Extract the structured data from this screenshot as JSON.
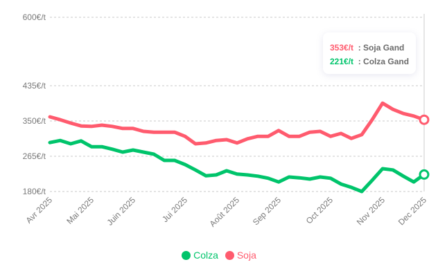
{
  "chart_data": {
    "type": "line",
    "x_tick_labels": [
      {
        "label": "Avr 2025",
        "index": 0
      },
      {
        "label": "Mai 2025",
        "index": 4
      },
      {
        "label": "Juin 2025",
        "index": 8
      },
      {
        "label": "Jui 2025",
        "index": 13
      },
      {
        "label": "Août 2025",
        "index": 18
      },
      {
        "label": "Sep 2025",
        "index": 22
      },
      {
        "label": "Oct 2025",
        "index": 27
      },
      {
        "label": "Nov 2025",
        "index": 32
      },
      {
        "label": "Dec 2025",
        "index": 36
      }
    ],
    "y_ticks": [
      {
        "value": 180,
        "label": "180€/t"
      },
      {
        "value": 265,
        "label": "265€/t"
      },
      {
        "value": 350,
        "label": "350€/t"
      },
      {
        "value": 435,
        "label": "435€/t"
      },
      {
        "value": 600,
        "label": "600€/t"
      }
    ],
    "ylim": [
      180,
      600
    ],
    "grid": true,
    "series": [
      {
        "name": "Soja",
        "color": "#ff5b6e",
        "values": [
          360,
          353,
          345,
          338,
          337,
          340,
          337,
          332,
          332,
          325,
          323,
          323,
          323,
          313,
          295,
          297,
          303,
          305,
          297,
          307,
          313,
          313,
          327,
          313,
          313,
          323,
          325,
          313,
          320,
          308,
          317,
          353,
          393,
          378,
          368,
          362,
          353
        ]
      },
      {
        "name": "Colza",
        "color": "#00c46b",
        "values": [
          298,
          303,
          295,
          302,
          288,
          288,
          282,
          275,
          280,
          275,
          270,
          255,
          255,
          245,
          232,
          218,
          220,
          230,
          222,
          220,
          217,
          212,
          203,
          215,
          213,
          210,
          215,
          212,
          198,
          190,
          180,
          207,
          235,
          232,
          217,
          203,
          221
        ]
      }
    ],
    "legend_position": "bottom-center",
    "tooltip": {
      "rows": [
        {
          "value": "353€/t",
          "label": ": Soja Gand",
          "color": "#ff5b6e"
        },
        {
          "value": "221€/t",
          "label": ": Colza Gand",
          "color": "#00c46b"
        }
      ]
    }
  }
}
